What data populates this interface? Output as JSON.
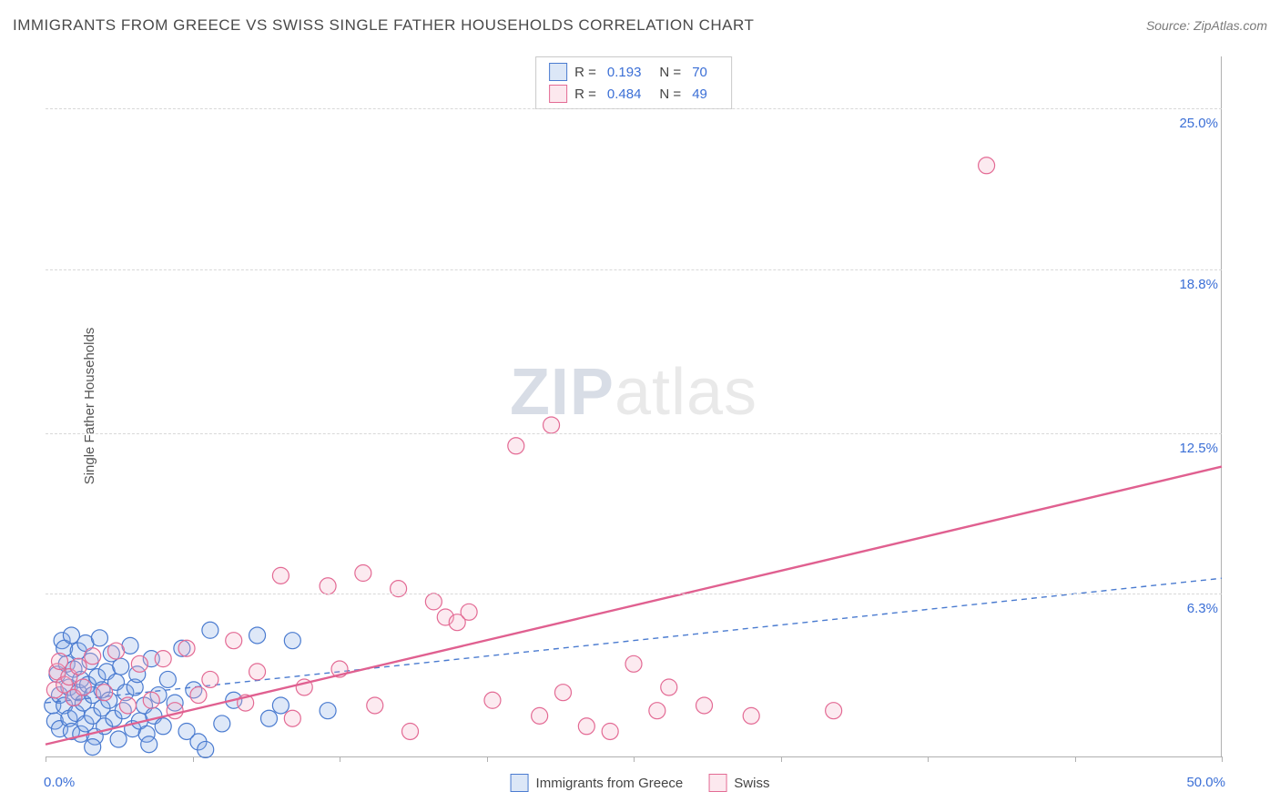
{
  "header": {
    "title": "IMMIGRANTS FROM GREECE VS SWISS SINGLE FATHER HOUSEHOLDS CORRELATION CHART",
    "source_prefix": "Source: ",
    "source": "ZipAtlas.com"
  },
  "watermark": {
    "strong": "ZIP",
    "light": "atlas"
  },
  "chart": {
    "type": "scatter",
    "ylabel": "Single Father Households",
    "xlim": [
      0,
      50
    ],
    "ylim": [
      0,
      27
    ],
    "x_ticks": [
      0,
      6.25,
      12.5,
      18.75,
      25,
      31.25,
      37.5,
      43.75,
      50
    ],
    "x_tick_labels": {
      "min": "0.0%",
      "max": "50.0%"
    },
    "y_grid": [
      6.3,
      12.5,
      18.8,
      25.0
    ],
    "y_tick_labels": [
      "6.3%",
      "12.5%",
      "18.8%",
      "25.0%"
    ],
    "background_color": "#ffffff",
    "grid_color": "#d8d8d8",
    "axis_color": "#b0b0b0",
    "tick_label_color": "#3b6fd6",
    "marker_radius": 9,
    "marker_stroke_width": 1.2,
    "marker_fill_opacity": 0.28,
    "series": [
      {
        "key": "greece",
        "label": "Immigrants from Greece",
        "color_stroke": "#4a7bd0",
        "color_fill": "#8aaee6",
        "r_label": "R =",
        "r_value": "0.193",
        "n_label": "N =",
        "n_value": "70",
        "trend": {
          "x0": 0,
          "y0": 2.1,
          "x1": 50,
          "y1": 6.9,
          "width": 1.4,
          "dash": "6 5",
          "color": "#4a7bd0"
        },
        "points": [
          [
            0.3,
            2.0
          ],
          [
            0.4,
            1.4
          ],
          [
            0.5,
            3.2
          ],
          [
            0.6,
            2.4
          ],
          [
            0.6,
            1.1
          ],
          [
            0.7,
            4.5
          ],
          [
            0.8,
            4.2
          ],
          [
            0.8,
            2.0
          ],
          [
            0.9,
            3.6
          ],
          [
            1.0,
            1.5
          ],
          [
            1.0,
            2.7
          ],
          [
            1.1,
            4.7
          ],
          [
            1.1,
            1.0
          ],
          [
            1.2,
            2.3
          ],
          [
            1.2,
            3.4
          ],
          [
            1.3,
            1.7
          ],
          [
            1.4,
            4.1
          ],
          [
            1.4,
            2.5
          ],
          [
            1.5,
            0.9
          ],
          [
            1.5,
            3.0
          ],
          [
            1.6,
            2.1
          ],
          [
            1.7,
            4.4
          ],
          [
            1.7,
            1.3
          ],
          [
            1.8,
            2.8
          ],
          [
            1.9,
            3.7
          ],
          [
            2.0,
            1.6
          ],
          [
            2.0,
            2.4
          ],
          [
            2.1,
            0.8
          ],
          [
            2.2,
            3.1
          ],
          [
            2.3,
            4.6
          ],
          [
            2.4,
            1.9
          ],
          [
            2.4,
            2.6
          ],
          [
            2.5,
            1.2
          ],
          [
            2.6,
            3.3
          ],
          [
            2.7,
            2.2
          ],
          [
            2.8,
            4.0
          ],
          [
            2.9,
            1.5
          ],
          [
            3.0,
            2.9
          ],
          [
            3.1,
            0.7
          ],
          [
            3.2,
            3.5
          ],
          [
            3.3,
            1.8
          ],
          [
            3.4,
            2.5
          ],
          [
            3.6,
            4.3
          ],
          [
            3.7,
            1.1
          ],
          [
            3.8,
            2.7
          ],
          [
            3.9,
            3.2
          ],
          [
            4.0,
            1.4
          ],
          [
            4.2,
            2.0
          ],
          [
            4.3,
            0.9
          ],
          [
            4.5,
            3.8
          ],
          [
            4.6,
            1.6
          ],
          [
            4.8,
            2.4
          ],
          [
            5.0,
            1.2
          ],
          [
            5.2,
            3.0
          ],
          [
            5.5,
            2.1
          ],
          [
            5.8,
            4.2
          ],
          [
            6.0,
            1.0
          ],
          [
            6.3,
            2.6
          ],
          [
            6.5,
            0.6
          ],
          [
            7.0,
            4.9
          ],
          [
            7.5,
            1.3
          ],
          [
            8.0,
            2.2
          ],
          [
            9.0,
            4.7
          ],
          [
            9.5,
            1.5
          ],
          [
            10.0,
            2.0
          ],
          [
            10.5,
            4.5
          ],
          [
            12.0,
            1.8
          ],
          [
            6.8,
            0.3
          ],
          [
            4.4,
            0.5
          ],
          [
            2.0,
            0.4
          ]
        ]
      },
      {
        "key": "swiss",
        "label": "Swiss",
        "color_stroke": "#e36a94",
        "color_fill": "#f4b4c8",
        "r_label": "R =",
        "r_value": "0.484",
        "n_label": "N =",
        "n_value": "49",
        "trend": {
          "x0": 0,
          "y0": 0.5,
          "x1": 50,
          "y1": 11.2,
          "width": 2.4,
          "dash": "none",
          "color": "#e06090"
        },
        "points": [
          [
            0.4,
            2.6
          ],
          [
            0.5,
            3.3
          ],
          [
            0.6,
            3.7
          ],
          [
            0.8,
            2.8
          ],
          [
            1.0,
            3.1
          ],
          [
            1.2,
            2.3
          ],
          [
            1.4,
            3.5
          ],
          [
            1.6,
            2.7
          ],
          [
            2.0,
            3.9
          ],
          [
            2.5,
            2.5
          ],
          [
            3.0,
            4.1
          ],
          [
            3.5,
            2.0
          ],
          [
            4.0,
            3.6
          ],
          [
            4.5,
            2.2
          ],
          [
            5.0,
            3.8
          ],
          [
            5.5,
            1.8
          ],
          [
            6.0,
            4.2
          ],
          [
            6.5,
            2.4
          ],
          [
            7.0,
            3.0
          ],
          [
            8.0,
            4.5
          ],
          [
            8.5,
            2.1
          ],
          [
            9.0,
            3.3
          ],
          [
            10.0,
            7.0
          ],
          [
            10.5,
            1.5
          ],
          [
            11.0,
            2.7
          ],
          [
            12.0,
            6.6
          ],
          [
            12.5,
            3.4
          ],
          [
            13.5,
            7.1
          ],
          [
            14.0,
            2.0
          ],
          [
            15.0,
            6.5
          ],
          [
            15.5,
            1.0
          ],
          [
            16.5,
            6.0
          ],
          [
            17.0,
            5.4
          ],
          [
            17.5,
            5.2
          ],
          [
            18.0,
            5.6
          ],
          [
            19.0,
            2.2
          ],
          [
            20.0,
            12.0
          ],
          [
            21.0,
            1.6
          ],
          [
            21.5,
            12.8
          ],
          [
            22.0,
            2.5
          ],
          [
            23.0,
            1.2
          ],
          [
            25.0,
            3.6
          ],
          [
            26.0,
            1.8
          ],
          [
            26.5,
            2.7
          ],
          [
            28.0,
            2.0
          ],
          [
            30.0,
            1.6
          ],
          [
            33.5,
            1.8
          ],
          [
            40.0,
            22.8
          ],
          [
            24.0,
            1.0
          ]
        ]
      }
    ]
  }
}
